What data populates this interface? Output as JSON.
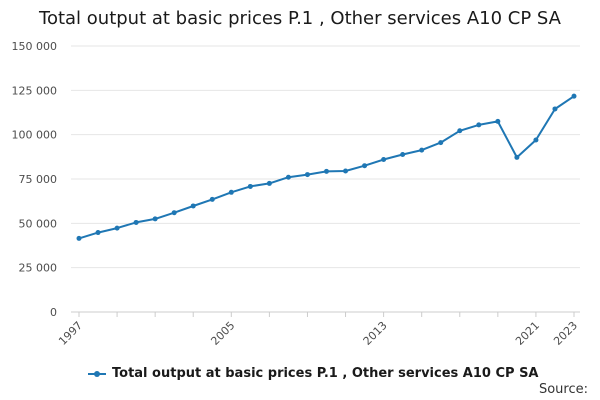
{
  "colors": {
    "series": "#1f77b4"
  },
  "chart_data": {
    "type": "line",
    "title": "Total output at basic prices P.1 , Other services A10 CP SA",
    "xlabel": "",
    "ylabel": "",
    "ylim": [
      0,
      150000
    ],
    "xlim": [
      1997,
      2023
    ],
    "yticks": [
      0,
      25000,
      50000,
      75000,
      100000,
      125000,
      150000
    ],
    "ytick_labels": [
      "0",
      "25 000",
      "50 000",
      "75 000",
      "100 000",
      "125 000",
      "150 000"
    ],
    "xtick_labels": [
      "1997",
      "2005",
      "2013",
      "2021",
      "2023"
    ],
    "grid": true,
    "legend": "bottom",
    "series": [
      {
        "name": "Total output at basic prices P.1 , Other services A10 CP SA",
        "x": [
          1997,
          1998,
          1999,
          2000,
          2001,
          2002,
          2003,
          2004,
          2005,
          2006,
          2007,
          2008,
          2009,
          2010,
          2011,
          2012,
          2013,
          2014,
          2015,
          2016,
          2017,
          2018,
          2019,
          2020,
          2021,
          2022,
          2023
        ],
        "values": [
          41500,
          44800,
          47300,
          50500,
          52500,
          56000,
          59800,
          63500,
          67500,
          70800,
          72500,
          76000,
          77500,
          79300,
          79500,
          82500,
          86000,
          88800,
          91300,
          95500,
          102200,
          105500,
          107500,
          87200,
          97000,
          114500,
          121700
        ]
      }
    ]
  },
  "legend": {
    "label": "Total output at basic prices P.1 , Other services A10 CP SA"
  },
  "source_label": "Source:"
}
